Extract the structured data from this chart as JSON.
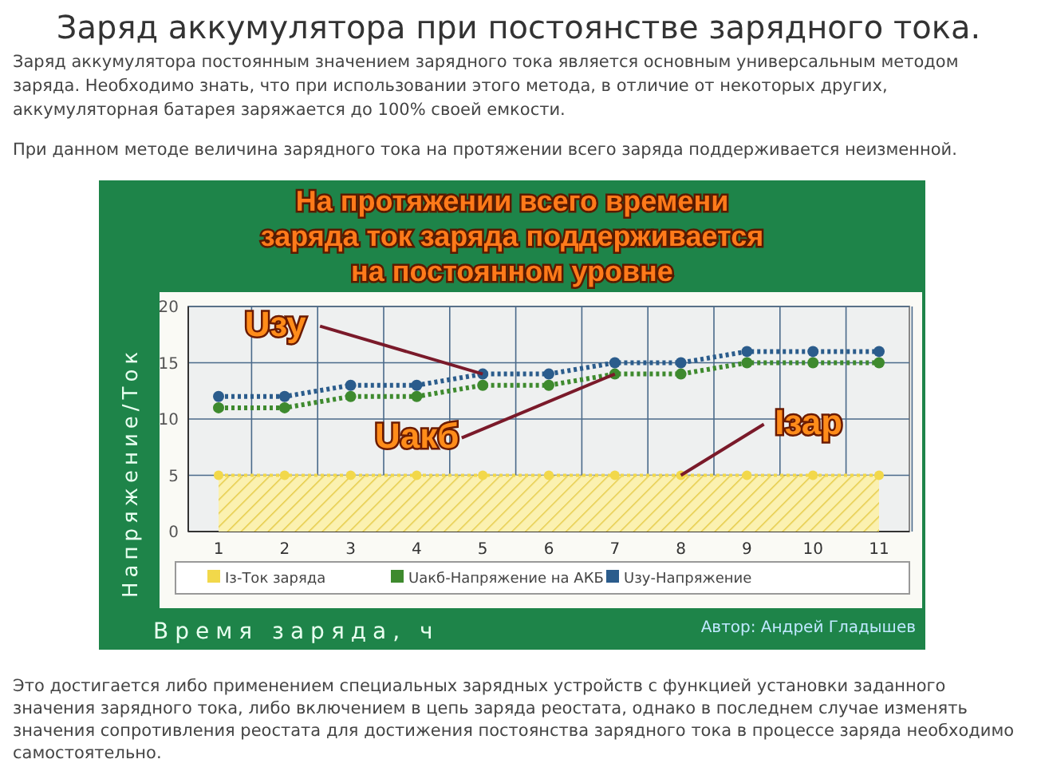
{
  "chart_data": {
    "type": "line",
    "title": "Заряд аккумулятора при постоянстве зарядного тока.",
    "subtitle": "На протяжении всего времени заряда ток заряда поддерживается на постоянном уровне",
    "xlabel": "Время заряда, ч",
    "ylabel": "Напряжение/Ток",
    "categories": [
      "1",
      "2",
      "3",
      "4",
      "5",
      "6",
      "7",
      "8",
      "9",
      "10",
      "11"
    ],
    "series": [
      {
        "name": "Iз-Ток заряда",
        "type": "area",
        "color": "#f2d84a",
        "values": [
          5,
          5,
          5,
          5,
          5,
          5,
          5,
          5,
          5,
          5,
          5
        ]
      },
      {
        "name": "Uакб-Напряжение на АКБ",
        "type": "line",
        "color": "#3e8a2e",
        "values": [
          11,
          11,
          12,
          12,
          13,
          13,
          14,
          14,
          15,
          15,
          15
        ]
      },
      {
        "name": "Uзу-Напряжение",
        "type": "line",
        "color": "#2b5c8c",
        "values": [
          12,
          12,
          13,
          13,
          14,
          14,
          15,
          15,
          16,
          16,
          16
        ]
      }
    ],
    "ylim": [
      0,
      20
    ],
    "yticks": [
      0,
      5,
      10,
      15,
      20
    ],
    "grid": true,
    "legend": "bottom",
    "marker": "circle",
    "line_style": "dotted",
    "annotations": [
      "Заряд аккумулятора постоянным значением зарядного тока является основным универсальным методом заряда. Необходимо знать, что при использовании этого метода, в отличие от некоторых других, аккумуляторная батарея заряжается до 100% своей емкости.",
      "При данном методе величина зарядного тока на протяжении всего заряда поддерживается неизменной.",
      "Автор: Андрей Гладышев",
      "Это достигается либо применением специальных зарядных устройств с функцией установки заданного значения зарядного тока, либо включением в цепь заряда реостата, однако в последнем случае изменять значения сопротивления реостата для достижения постоянства зарядного тока в процессе заряда необходимо самостоятельно.",
      {
        "text": "Uзу",
        "x": "5",
        "y": 14
      },
      {
        "text": "Uакб",
        "x": "7",
        "y": 14
      },
      {
        "text": "Iзар",
        "x": "8",
        "y": 5
      }
    ]
  }
}
